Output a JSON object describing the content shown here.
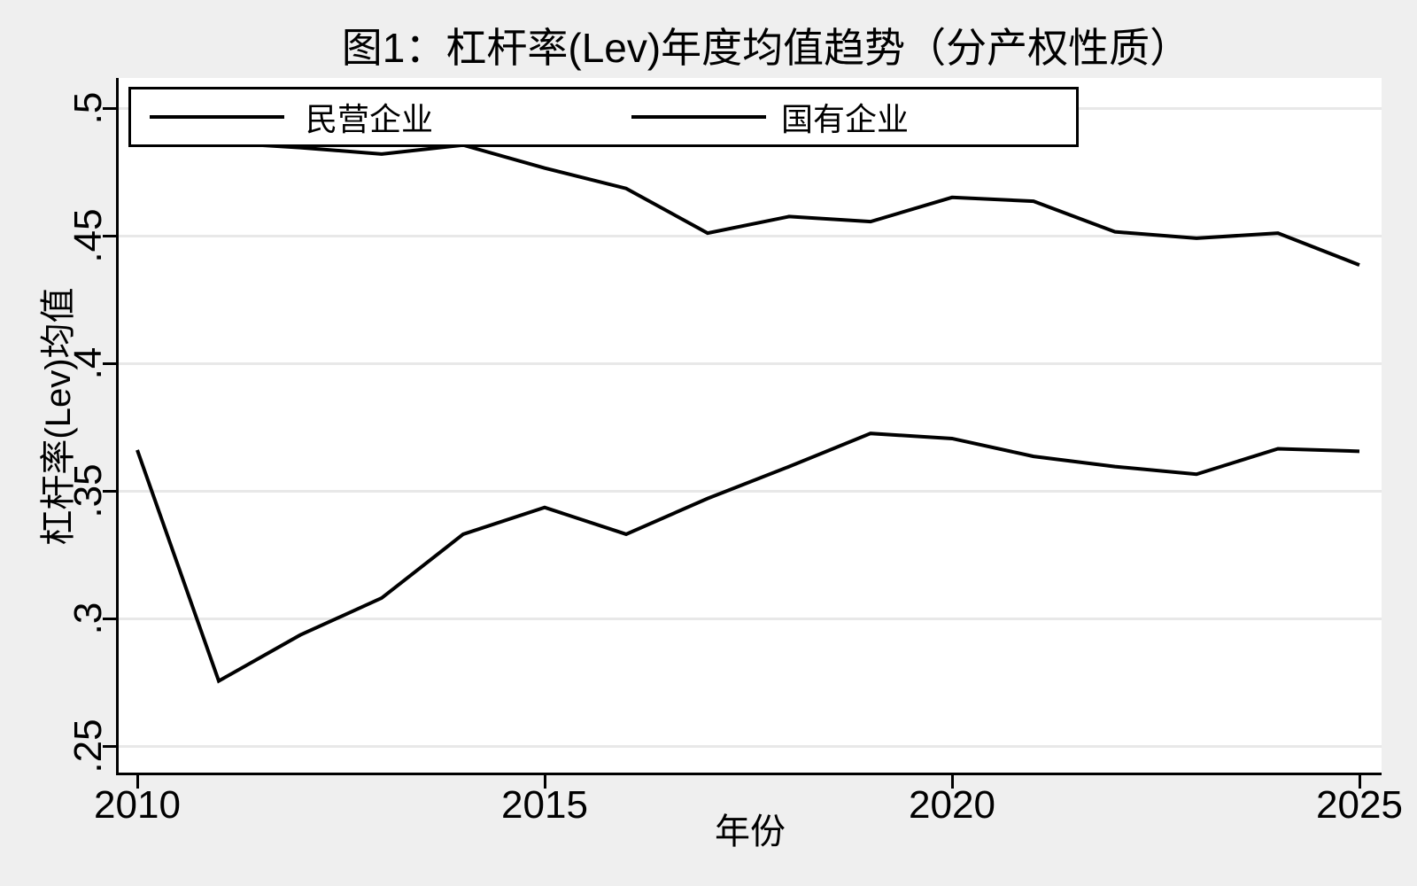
{
  "title": "图1：杠杆率(Lev)年度均值趋势（分产权性质）",
  "colors": {
    "background": "#efefef",
    "plot_background": "#ffffff",
    "gridline": "#e8e8e8",
    "line": "#000000",
    "axis": "#000000"
  },
  "chart_data": {
    "type": "line",
    "title": "图1：杠杆率(Lev)年度均值趋势（分产权性质）",
    "xlabel": "年份",
    "ylabel": "杠杆率(Lev)均值",
    "x": [
      2010,
      2011,
      2012,
      2013,
      2014,
      2015,
      2016,
      2017,
      2018,
      2019,
      2020,
      2021,
      2022,
      2023,
      2024,
      2025
    ],
    "series": [
      {
        "name": "民营企业",
        "values": [
          0.488,
          0.4865,
          0.4845,
          0.482,
          0.4855,
          0.4765,
          0.4685,
          0.451,
          0.4575,
          0.4555,
          0.465,
          0.4635,
          0.4515,
          0.449,
          0.451,
          0.4385
        ]
      },
      {
        "name": "国有企业",
        "values": [
          0.366,
          0.2755,
          0.2935,
          0.308,
          0.333,
          0.3435,
          0.333,
          0.347,
          0.3595,
          0.3725,
          0.3705,
          0.3635,
          0.3595,
          0.3565,
          0.3665,
          0.3655
        ]
      }
    ],
    "xticks": [
      {
        "label": "2010",
        "value": 2010
      },
      {
        "label": "2015",
        "value": 2015
      },
      {
        "label": "2020",
        "value": 2020
      },
      {
        "label": "2025",
        "value": 2025
      }
    ],
    "yticks": [
      {
        "label": ".25",
        "value": 0.25
      },
      {
        "label": ".3",
        "value": 0.3
      },
      {
        "label": ".35",
        "value": 0.35
      },
      {
        "label": ".4",
        "value": 0.4
      },
      {
        "label": ".45",
        "value": 0.45
      },
      {
        "label": ".5",
        "value": 0.5
      }
    ],
    "ylim": [
      0.25,
      0.5
    ],
    "xlim": [
      2010,
      2025
    ],
    "grid": "horizontal",
    "legend_position": "top-inside",
    "line_color": "#000000"
  }
}
